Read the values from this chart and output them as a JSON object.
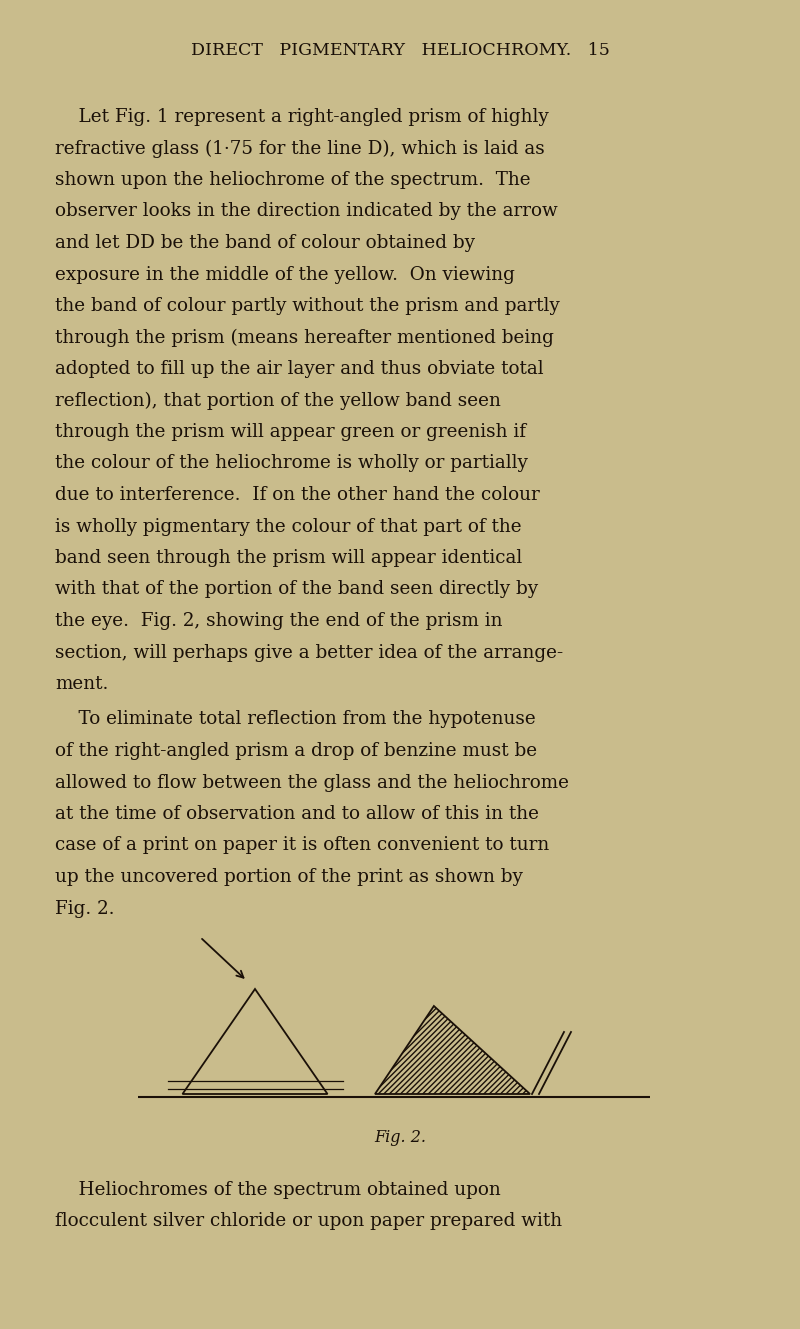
{
  "background_color": "#c9bc8c",
  "text_color": "#1a1008",
  "page_header": "DIRECT   PIGMENTARY   HELIOCHROMY.   15",
  "p1_lines": [
    "    Let Fig. 1 represent a right-angled prism of highly",
    "refractive glass (1·75 for the line D), which is laid as",
    "shown upon the heliochrome of the spectrum.  The",
    "observer looks in the direction indicated by the arrow",
    "and let DD be the band of colour obtained by",
    "exposure in the middle of the yellow.  On viewing",
    "the band of colour partly without the prism and partly",
    "through the prism (means hereafter mentioned being",
    "adopted to fill up the air layer and thus obviate total",
    "reflection), that portion of the yellow band seen",
    "through the prism will appear green or greenish if",
    "the colour of the heliochrome is wholly or partially",
    "due to interference.  If on the other hand the colour",
    "is wholly pigmentary the colour of that part of the",
    "band seen through the prism will appear identical",
    "with that of the portion of the band seen directly by",
    "the eye.  Fig. 2, showing the end of the prism in",
    "section, will perhaps give a better idea of the arrange-",
    "ment."
  ],
  "p2_lines": [
    "    To eliminate total reflection from the hypotenuse",
    "of the right-angled prism a drop of benzine must be",
    "allowed to flow between the glass and the heliochrome",
    "at the time of observation and to allow of this in the",
    "case of a print on paper it is often convenient to turn",
    "up the uncovered portion of the print as shown by",
    "Fig. 2."
  ],
  "p3_lines": [
    "    Heliochromes of the spectrum obtained upon",
    "flocculent silver chloride or upon paper prepared with"
  ],
  "fig_caption": "Fig. 2.",
  "fig_width": 8.0,
  "fig_height": 13.29,
  "dpi": 100
}
